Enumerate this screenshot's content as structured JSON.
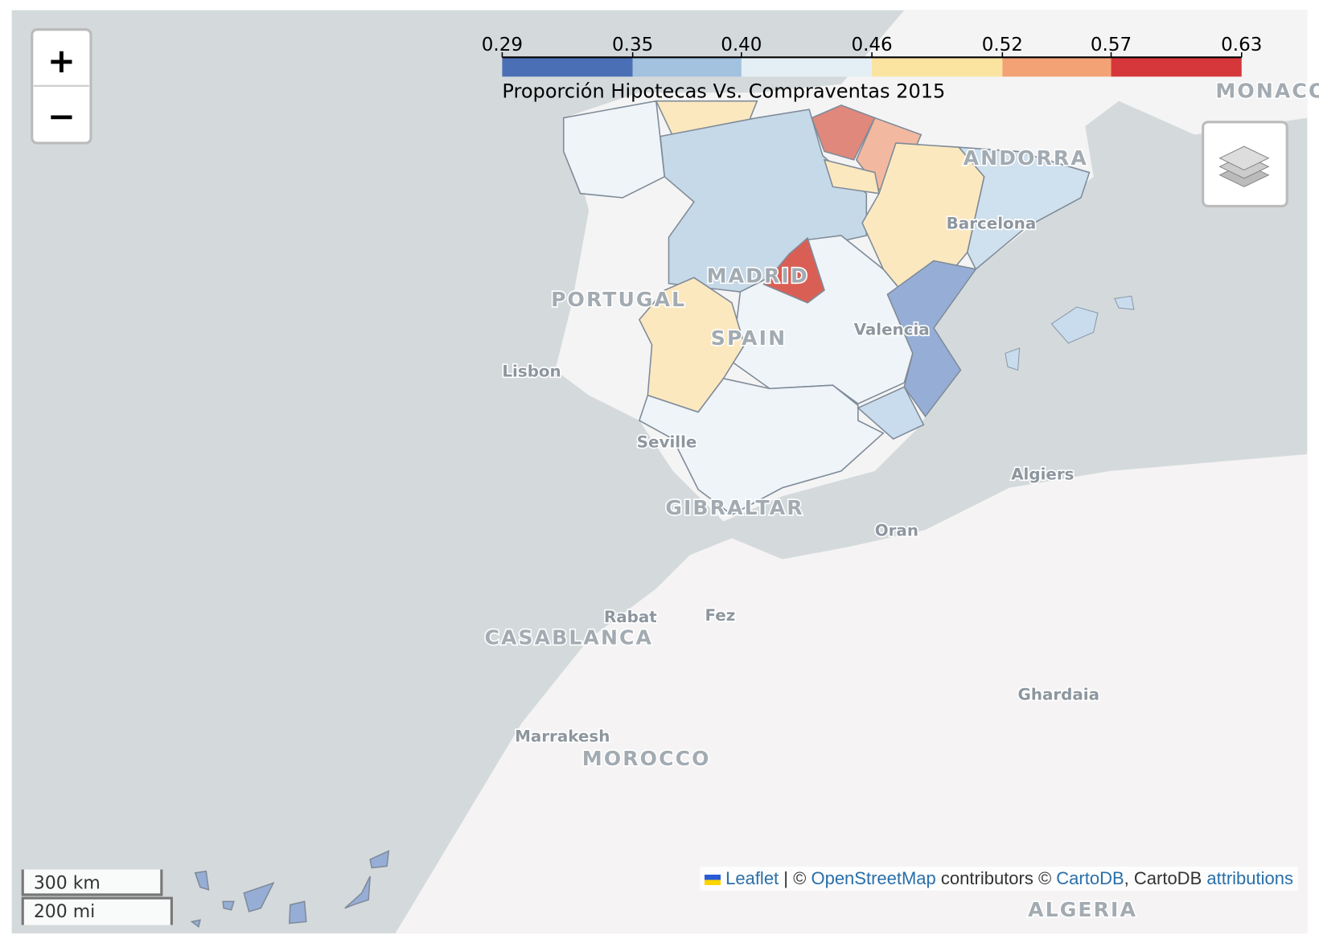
{
  "legend": {
    "title": "Proporción Hipotecas Vs. Compraventas 2015",
    "ticks": [
      0.29,
      0.35,
      {
        "value": 0.4,
        "label": "0.40"
      },
      0.46,
      0.52,
      0.57,
      0.63
    ],
    "colors": [
      "#4a6fb5",
      "#a2c2df",
      "#e4eff5",
      "#fbe3a0",
      "#f3a276",
      "#d6373a"
    ]
  },
  "controls": {
    "zoom_in": "+",
    "zoom_out": "−"
  },
  "scale": {
    "metric": "300 km",
    "imperial": "200 mi"
  },
  "attribution": {
    "leaflet": "Leaflet",
    "sep": "| ©",
    "osm": "OpenStreetMap",
    "contrib": "contributors ©",
    "cartodb": "CartoDB",
    "mid": ", CartoDB",
    "attributions": "attributions"
  },
  "labels": {
    "portugal": "PORTUGAL",
    "spain": "SPAIN",
    "madrid": "MADRID",
    "andorra": "ANDORRA",
    "monaco": "MONACO",
    "barcelona": "Barcelona",
    "valencia": "Valencia",
    "lisbon": "Lisbon",
    "seville": "Seville",
    "gibraltar": "GIBRALTAR",
    "algiers": "Algiers",
    "oran": "Oran",
    "rabat": "Rabat",
    "fez": "Fez",
    "casablanca": "CASABLANCA",
    "marrakesh": "Marrakesh",
    "morocco": "MOROCCO",
    "ghardaia": "Ghardaia",
    "algeria": "ALGERIA"
  }
}
